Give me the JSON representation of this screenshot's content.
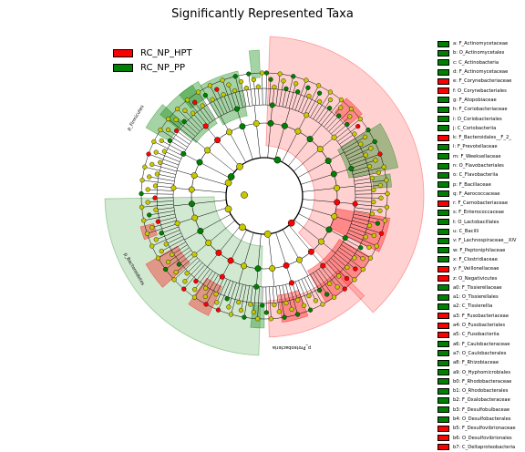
{
  "title": "Significantly Represented Taxa",
  "colors": {
    "RC_NP_HPT": "#ff0000",
    "RC_NP_PP": "#008000",
    "none": "#c8c800"
  },
  "chart_data": {
    "type": "cladogram",
    "title": "Significantly Represented Taxa",
    "legend": {
      "placement": "top-left",
      "entries": [
        {
          "name": "RC_NP_HPT",
          "color": "#ff0000"
        },
        {
          "name": "RC_NP_PP",
          "color": "#008000"
        }
      ]
    },
    "sector_labels": [
      {
        "text": "p_Firmicutes",
        "group": "RC_NP_PP"
      },
      {
        "text": "p_Bacteroidetes",
        "group": "RC_NP_HPT"
      },
      {
        "text": "p_Proteobacteria",
        "group": "RC_NP_HPT"
      }
    ],
    "key": [
      {
        "text": "a: F_Actinomycetaceae",
        "group": "RC_NP_PP"
      },
      {
        "text": "b: O_Actinomycetales",
        "group": "RC_NP_PP"
      },
      {
        "text": "c: C_Actinobacteria",
        "group": "RC_NP_PP"
      },
      {
        "text": "d: F_Actinomycetaceae",
        "group": "RC_NP_PP"
      },
      {
        "text": "e: F_Corynebacteriaceae",
        "group": "RC_NP_HPT"
      },
      {
        "text": "f: O_Corynebacteriales",
        "group": "RC_NP_HPT"
      },
      {
        "text": "g: F_Atopobiaceae",
        "group": "RC_NP_PP"
      },
      {
        "text": "h: F_Coriobacteriaceae",
        "group": "RC_NP_PP"
      },
      {
        "text": "i: O_Coriobacteriales",
        "group": "RC_NP_PP"
      },
      {
        "text": "j: C_Coriobacteriia",
        "group": "RC_NP_PP"
      },
      {
        "text": "k: F_Bacteroidales__F_2_",
        "group": "RC_NP_HPT"
      },
      {
        "text": "l: F_Prevotellaceae",
        "group": "RC_NP_PP"
      },
      {
        "text": "m: F_Weeksellaceae",
        "group": "RC_NP_PP"
      },
      {
        "text": "n: O_Flavobacteriales",
        "group": "RC_NP_PP"
      },
      {
        "text": "o: C_Flavobacteriia",
        "group": "RC_NP_PP"
      },
      {
        "text": "p: F_Bacillaceae",
        "group": "RC_NP_PP"
      },
      {
        "text": "q: F_Aerococcaceae",
        "group": "RC_NP_PP"
      },
      {
        "text": "r: F_Carnobacteriaceae",
        "group": "RC_NP_HPT"
      },
      {
        "text": "s: F_Enterococcaceae",
        "group": "RC_NP_PP"
      },
      {
        "text": "t: O_Lactobacillales",
        "group": "RC_NP_PP"
      },
      {
        "text": "u: C_Bacilli",
        "group": "RC_NP_PP"
      },
      {
        "text": "v: F_Lachnospiraceae__XIV",
        "group": "RC_NP_PP"
      },
      {
        "text": "w: F_Peptoniphilaceae",
        "group": "RC_NP_PP"
      },
      {
        "text": "x: F_Clostridiaceae",
        "group": "RC_NP_PP"
      },
      {
        "text": "y: F_Veillonellaceae",
        "group": "RC_NP_HPT"
      },
      {
        "text": "z: O_Negativicutes",
        "group": "RC_NP_HPT"
      },
      {
        "text": "a0: F_Tissierellaceae",
        "group": "RC_NP_PP"
      },
      {
        "text": "a1: O_Tissierellales",
        "group": "RC_NP_PP"
      },
      {
        "text": "a2: C_Tissierellia",
        "group": "RC_NP_PP"
      },
      {
        "text": "a3: F_Fusobacteriaceae",
        "group": "RC_NP_HPT"
      },
      {
        "text": "a4: O_Fusobacteriales",
        "group": "RC_NP_HPT"
      },
      {
        "text": "a5: C_Fusobacteriia",
        "group": "RC_NP_HPT"
      },
      {
        "text": "a6: F_Caulobacteraceae",
        "group": "RC_NP_PP"
      },
      {
        "text": "a7: O_Caulobacterales",
        "group": "RC_NP_PP"
      },
      {
        "text": "a8: F_Rhizobiaceae",
        "group": "RC_NP_PP"
      },
      {
        "text": "a9: O_Hyphomicrobiales",
        "group": "RC_NP_PP"
      },
      {
        "text": "b0: F_Rhodobacteraceae",
        "group": "RC_NP_PP"
      },
      {
        "text": "b1: O_Rhodobacterales",
        "group": "RC_NP_PP"
      },
      {
        "text": "b2: F_Oxalobacteraceae",
        "group": "RC_NP_PP"
      },
      {
        "text": "b3: F_Desulfobulbaceae",
        "group": "RC_NP_PP"
      },
      {
        "text": "b4: O_Desulfobacterales",
        "group": "RC_NP_PP"
      },
      {
        "text": "b5: F_Desulfovibrionaceae",
        "group": "RC_NP_HPT"
      },
      {
        "text": "b6: O_Desulfovibrionales",
        "group": "RC_NP_HPT"
      },
      {
        "text": "b7: C_Deltaproteobacteria",
        "group": "RC_NP_HPT"
      }
    ],
    "leaf_node_colors": [
      "g",
      "g",
      "y",
      "y",
      "y",
      "g",
      "g",
      "y",
      "g",
      "y",
      "g",
      "y",
      "y",
      "g",
      "y",
      "y",
      "y",
      "g",
      "y",
      "y",
      "g",
      "y",
      "y",
      "g",
      "y",
      "r",
      "y",
      "g",
      "y",
      "y",
      "g",
      "y",
      "y",
      "r",
      "y",
      "y",
      "y",
      "y",
      "y",
      "y",
      "y",
      "y",
      "y",
      "y",
      "y",
      "y",
      "y",
      "y",
      "y",
      "g",
      "y",
      "r",
      "y",
      "y",
      "y",
      "y",
      "g",
      "y",
      "y",
      "y",
      "y",
      "r",
      "y",
      "y",
      "r",
      "y",
      "r",
      "y",
      "y",
      "y",
      "g",
      "g",
      "y",
      "y",
      "y",
      "g",
      "y",
      "y",
      "g",
      "y",
      "y",
      "g",
      "y",
      "y",
      "y",
      "g",
      "g",
      "y",
      "y",
      "y",
      "g",
      "y",
      "y",
      "y",
      "y",
      "g",
      "r",
      "y",
      "y",
      "r",
      "y",
      "y",
      "y",
      "y",
      "r",
      "r",
      "y",
      "y",
      "y",
      "y",
      "g",
      "g",
      "y",
      "y",
      "y",
      "y",
      "y",
      "y",
      "y",
      "g",
      "y",
      "y",
      "r",
      "y",
      "g",
      "y",
      "y",
      "y",
      "r",
      "g",
      "y",
      "y",
      "y",
      "y",
      "y",
      "y",
      "y",
      "y",
      "r",
      "y",
      "y",
      "y",
      "y",
      "g",
      "y",
      "y",
      "r",
      "y",
      "y",
      "g",
      "y",
      "y",
      "y",
      "y",
      "r",
      "y",
      "y",
      "g",
      "y",
      "y",
      "r",
      "y",
      "y",
      "y",
      "y",
      "g",
      "y",
      "y",
      "g",
      "y",
      "y",
      "y"
    ]
  }
}
